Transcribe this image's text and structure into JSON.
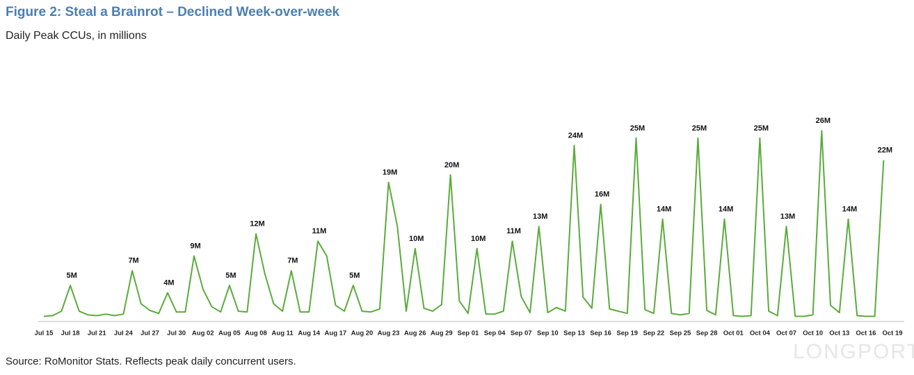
{
  "chart_data": {
    "type": "line",
    "title": "Figure 2: Steal a Brainrot – Declined Week-over-week",
    "subtitle": "Daily Peak CCUs, in millions",
    "source": "Source: RoMonitor Stats. Reflects peak daily concurrent users.",
    "watermark": "LONGPORT",
    "categories": [
      "Jul 15",
      null,
      null,
      "Jul 18",
      null,
      null,
      "Jul 21",
      null,
      null,
      "Jul 24",
      null,
      null,
      "Jul 27",
      null,
      null,
      "Jul 30",
      null,
      null,
      "Aug 02",
      null,
      null,
      "Aug 05",
      null,
      null,
      "Aug 08",
      null,
      null,
      "Aug 11",
      null,
      null,
      "Aug 14",
      null,
      null,
      "Aug 17",
      null,
      null,
      "Aug 20",
      null,
      null,
      "Aug 23",
      null,
      null,
      "Aug 26",
      null,
      null,
      "Aug 29",
      null,
      null,
      "Sep 01",
      null,
      null,
      "Sep 04",
      null,
      null,
      "Sep 07",
      null,
      null,
      "Sep 10",
      null,
      null,
      "Sep 13",
      null,
      null,
      "Sep 16",
      null,
      null,
      "Sep 19",
      null,
      null,
      "Sep 22",
      null,
      null,
      "Sep 25",
      null,
      null,
      "Sep 28",
      null,
      null,
      "Oct 01",
      null,
      null,
      "Oct 04",
      null,
      null,
      "Oct 07",
      null,
      null,
      "Oct 10",
      null,
      null,
      "Oct 13",
      null,
      null,
      "Oct 16",
      null,
      null,
      "Oct 19"
    ],
    "series": [
      {
        "name": "Daily Peak CCUs",
        "color": "#5aab3a",
        "values": [
          0.8,
          0.9,
          1.5,
          5,
          1.5,
          1.0,
          0.9,
          1.1,
          0.9,
          1.1,
          7,
          2.5,
          1.6,
          1.2,
          4,
          1.4,
          1.4,
          9,
          4.5,
          2.1,
          1.4,
          5,
          1.5,
          1.4,
          12,
          6.6,
          2.5,
          1.5,
          7,
          1.4,
          1.4,
          11,
          9.0,
          2.3,
          1.5,
          5,
          1.5,
          1.4,
          1.8,
          19,
          13.0,
          1.5,
          10,
          1.9,
          1.5,
          2.4,
          20,
          2.9,
          1.2,
          10,
          1.1,
          1.1,
          1.5,
          11,
          3.5,
          1.3,
          13,
          1.3,
          2.0,
          1.5,
          24,
          3.4,
          1.9,
          16,
          1.8,
          1.5,
          1.2,
          25,
          1.7,
          1.2,
          14,
          1.2,
          1.0,
          1.2,
          25,
          1.6,
          1.0,
          14,
          0.9,
          0.8,
          0.9,
          25,
          1.5,
          0.9,
          13,
          0.8,
          0.8,
          1.0,
          26,
          2.3,
          1.3,
          14,
          0.9,
          0.8,
          0.8,
          22,
          null
        ],
        "value_labels": [
          null,
          null,
          null,
          "5M",
          null,
          null,
          null,
          null,
          null,
          null,
          "7M",
          null,
          null,
          null,
          "4M",
          null,
          null,
          "9M",
          null,
          null,
          null,
          "5M",
          null,
          null,
          "12M",
          null,
          null,
          null,
          "7M",
          null,
          null,
          "11M",
          null,
          null,
          null,
          "5M",
          null,
          null,
          null,
          "19M",
          null,
          null,
          "10M",
          null,
          null,
          null,
          "20M",
          null,
          null,
          "10M",
          null,
          null,
          null,
          "11M",
          null,
          null,
          "13M",
          null,
          null,
          null,
          "24M",
          null,
          null,
          "16M",
          null,
          null,
          null,
          "25M",
          null,
          null,
          "14M",
          null,
          null,
          null,
          "25M",
          null,
          null,
          "14M",
          null,
          null,
          null,
          "25M",
          null,
          null,
          "13M",
          null,
          null,
          null,
          "26M",
          null,
          null,
          "14M",
          null,
          null,
          null,
          "22M",
          null
        ]
      }
    ],
    "ylim": [
      0,
      38
    ]
  }
}
